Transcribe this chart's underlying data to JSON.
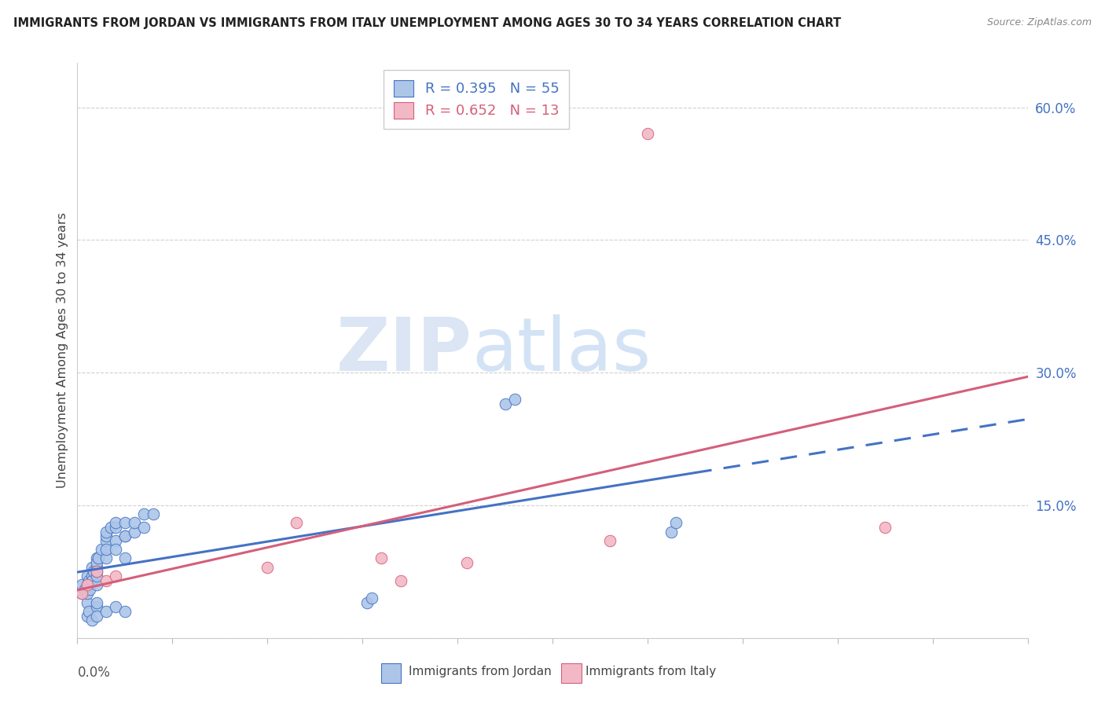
{
  "title": "IMMIGRANTS FROM JORDAN VS IMMIGRANTS FROM ITALY UNEMPLOYMENT AMONG AGES 30 TO 34 YEARS CORRELATION CHART",
  "source": "Source: ZipAtlas.com",
  "ylabel": "Unemployment Among Ages 30 to 34 years",
  "ytick_values": [
    0.0,
    0.15,
    0.3,
    0.45,
    0.6
  ],
  "ytick_labels": [
    "",
    "15.0%",
    "30.0%",
    "45.0%",
    "60.0%"
  ],
  "xlim": [
    0.0,
    0.1
  ],
  "ylim": [
    0.0,
    0.65
  ],
  "jordan_R": 0.395,
  "jordan_N": 55,
  "italy_R": 0.652,
  "italy_N": 13,
  "jordan_color": "#adc6e8",
  "jordan_line_color": "#4472c4",
  "italy_color": "#f2b8c6",
  "italy_line_color": "#d45f7a",
  "legend_label_jordan": "Immigrants from Jordan",
  "legend_label_italy": "Immigrants from Italy",
  "jordan_x": [
    0.0005,
    0.0005,
    0.0008,
    0.001,
    0.001,
    0.001,
    0.001,
    0.0012,
    0.0013,
    0.0015,
    0.0015,
    0.0015,
    0.0017,
    0.002,
    0.002,
    0.002,
    0.002,
    0.002,
    0.002,
    0.0022,
    0.0025,
    0.003,
    0.003,
    0.003,
    0.003,
    0.003,
    0.0035,
    0.004,
    0.004,
    0.004,
    0.004,
    0.005,
    0.005,
    0.005,
    0.005,
    0.006,
    0.006,
    0.007,
    0.007,
    0.008,
    0.001,
    0.0012,
    0.0015,
    0.002,
    0.002,
    0.003,
    0.004,
    0.005,
    0.0305,
    0.031,
    0.045,
    0.046,
    0.0625,
    0.063,
    0.002
  ],
  "jordan_y": [
    0.05,
    0.06,
    0.055,
    0.04,
    0.06,
    0.07,
    0.05,
    0.065,
    0.055,
    0.07,
    0.08,
    0.065,
    0.075,
    0.06,
    0.08,
    0.09,
    0.07,
    0.085,
    0.075,
    0.09,
    0.1,
    0.11,
    0.09,
    0.1,
    0.115,
    0.12,
    0.125,
    0.11,
    0.125,
    0.13,
    0.1,
    0.115,
    0.13,
    0.09,
    0.115,
    0.12,
    0.13,
    0.125,
    0.14,
    0.14,
    0.025,
    0.03,
    0.02,
    0.035,
    0.025,
    0.03,
    0.035,
    0.03,
    0.04,
    0.045,
    0.265,
    0.27,
    0.12,
    0.13,
    0.04
  ],
  "italy_x": [
    0.0005,
    0.001,
    0.002,
    0.003,
    0.004,
    0.02,
    0.023,
    0.032,
    0.034,
    0.041,
    0.056,
    0.06,
    0.085
  ],
  "italy_y": [
    0.05,
    0.06,
    0.075,
    0.065,
    0.07,
    0.08,
    0.13,
    0.09,
    0.065,
    0.085,
    0.11,
    0.57,
    0.125
  ],
  "watermark_zip": "ZIP",
  "watermark_atlas": "atlas",
  "background_color": "#ffffff",
  "grid_color": "#d0d0d0"
}
